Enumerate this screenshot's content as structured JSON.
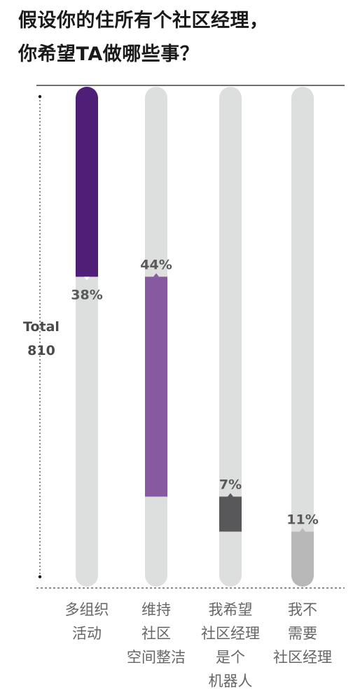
{
  "title": {
    "line1": "假设你的住所有个社区经理，",
    "line2": "你希望TA做哪些事？"
  },
  "total": {
    "label": "Total",
    "value": "810"
  },
  "chart_data": {
    "type": "bar",
    "title": "假设你的住所有个社区经理，你希望TA做哪些事？",
    "categories": [
      [
        "多组织",
        "活动"
      ],
      [
        "维持",
        "社区",
        "空间整洁"
      ],
      [
        "我希望",
        "社区经理",
        "是个",
        "机器人"
      ],
      [
        "我不",
        "需要",
        "社区经理"
      ]
    ],
    "series": [
      {
        "values": [
          38,
          44,
          7,
          11
        ],
        "labels": [
          "38%",
          "44%",
          "7%",
          "11%"
        ]
      }
    ],
    "stacked_cumulative": true,
    "ylim": [
      0,
      100
    ],
    "bar_colors": [
      "#4f1f78",
      "#8659a0",
      "#58585a",
      "#b8b8b8"
    ],
    "track_color": "#dddede",
    "label_color": "#5a5a5a",
    "xlabel": "",
    "ylabel": "",
    "grid": false
  }
}
